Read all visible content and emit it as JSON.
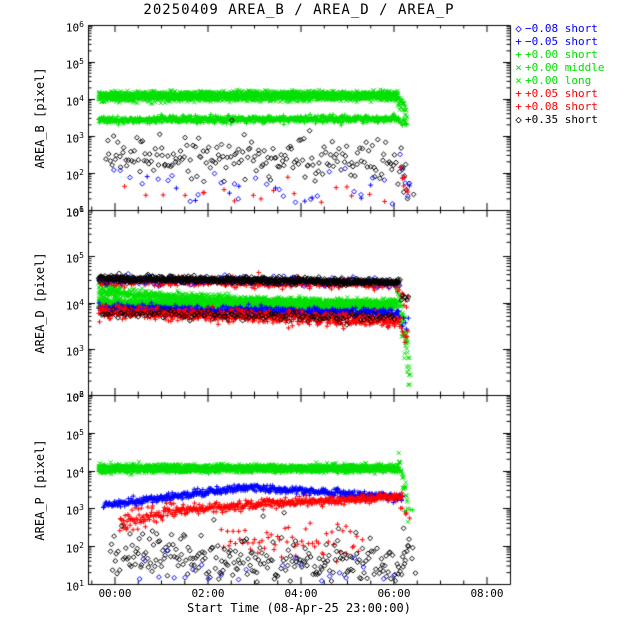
{
  "chart_data": {
    "type": "scatter",
    "title": "20250409 AREA_B / AREA_D / AREA_P",
    "log_base": "10",
    "x_axis": {
      "label": "Start Time (08-Apr-25 23:00:00)",
      "tick_labels": [
        "00:00",
        "02:00",
        "04:00",
        "06:00",
        "08:00"
      ],
      "tick_hours": [
        0,
        2,
        4,
        6,
        8
      ],
      "minor_tick_hours": 0.5,
      "range_hours": [
        -0.58,
        8.49
      ]
    },
    "legend": [
      {
        "glyph": "◇",
        "color": "#0000ff",
        "label": "−0.08 short"
      },
      {
        "glyph": "+",
        "color": "#0000ff",
        "label": "−0.05 short"
      },
      {
        "glyph": "+",
        "color": "#00e000",
        "label": "+0.00 short"
      },
      {
        "glyph": "×",
        "color": "#00e000",
        "label": "+0.00 middle"
      },
      {
        "glyph": "×",
        "color": "#00e000",
        "label": "+0.00 long"
      },
      {
        "glyph": "+",
        "color": "#ff0000",
        "label": "+0.05 short"
      },
      {
        "glyph": "+",
        "color": "#ff0000",
        "label": "+0.08 short"
      },
      {
        "glyph": "◇",
        "color": "#000000",
        "label": "+0.35 short"
      }
    ],
    "panels": [
      {
        "name": "AREA_B",
        "ylabel": "AREA_B [pixel]",
        "log_min": 1,
        "log_max": 6,
        "yticks": [
          6,
          5,
          4,
          3,
          2,
          1
        ],
        "series": [
          {
            "legend": "+0.00 long",
            "sym": "cross",
            "color": "#00e000",
            "segs": [
              [
                -0.35,
                6.08,
                0.007,
                4.02,
                4.06,
                0.055
              ],
              [
                6.08,
                6.28,
                0.012,
                4.0,
                3.55,
                0.13
              ]
            ]
          },
          {
            "legend": "+0.00 middle",
            "sym": "cross",
            "color": "#00e000",
            "segs": [
              [
                -0.35,
                6.08,
                0.007,
                4.11,
                4.13,
                0.05
              ],
              [
                6.08,
                6.26,
                0.013,
                4.08,
                3.82,
                0.1
              ]
            ]
          },
          {
            "legend": "+0.00 short",
            "sym": "plus",
            "color": "#00e000",
            "segs": [
              [
                -0.35,
                6.1,
                0.008,
                3.43,
                3.47,
                0.045
              ],
              [
                6.1,
                6.28,
                0.016,
                3.42,
                3.3,
                0.09
              ]
            ]
          },
          {
            "legend": "+0.35 short",
            "sym": "diamond",
            "color": "#000000",
            "segs": [
              [
                -0.2,
                6.25,
                0.033,
                2.5,
                2.3,
                0.3
              ],
              [
                6.15,
                6.4,
                0.05,
                2.2,
                1.6,
                0.3
              ]
            ]
          },
          {
            "legend": "−0.08 short",
            "sym": "diamond",
            "color": "#0000ff",
            "segs": [
              [
                -0.1,
                6.3,
                0.24,
                1.7,
                1.6,
                0.3
              ],
              [
                6.12,
                6.3,
                0.045,
                2.2,
                1.5,
                0.3
              ]
            ]
          },
          {
            "legend": "+0.05 short",
            "sym": "plus",
            "color": "#ff0000",
            "segs": [
              [
                0.2,
                6.3,
                0.4,
                1.45,
                1.4,
                0.25
              ],
              [
                6.12,
                6.32,
                0.05,
                2.3,
                1.5,
                0.28
              ]
            ]
          },
          {
            "legend": "+0.08 short",
            "sym": "plus",
            "color": "#ff0000",
            "segs": [
              [
                1.0,
                5.8,
                0.8,
                1.3,
                1.3,
                0.2
              ]
            ]
          },
          {
            "legend": "−0.05 short",
            "sym": "plus",
            "color": "#0000ff",
            "segs": [
              [
                0.5,
                6.2,
                0.6,
                1.5,
                1.4,
                0.25
              ]
            ]
          }
        ]
      },
      {
        "name": "AREA_D",
        "ylabel": "AREA_D [pixel]",
        "log_min": 2,
        "log_max": 6,
        "yticks": [
          6,
          5,
          4,
          3,
          2
        ],
        "series": [
          {
            "legend": "+0.00 middle",
            "sym": "cross",
            "color": "#00e000",
            "segs": [
              [
                -0.35,
                0.1,
                0.01,
                4.38,
                4.25,
                0.07
              ],
              [
                -0.35,
                2.8,
                0.008,
                4.22,
                4.04,
                0.05
              ],
              [
                2.8,
                6.05,
                0.008,
                4.04,
                3.94,
                0.05
              ],
              [
                6.05,
                6.35,
                0.007,
                4.45,
                2.2,
                0.22
              ]
            ]
          },
          {
            "legend": "+0.00 long",
            "sym": "cross",
            "color": "#00e000",
            "segs": [
              [
                -0.35,
                6.05,
                0.006,
                4.0,
                3.98,
                0.045
              ],
              [
                6.05,
                6.3,
                0.01,
                3.9,
                3.3,
                0.18
              ]
            ]
          },
          {
            "legend": "+0.00 short",
            "sym": "plus",
            "color": "#00e000",
            "segs": [
              [
                -0.35,
                6.05,
                0.011,
                3.95,
                3.92,
                0.04
              ]
            ]
          },
          {
            "legend": "−0.05 short",
            "sym": "plus",
            "color": "#0000ff",
            "segs": [
              [
                -0.35,
                6.1,
                0.01,
                3.87,
                3.77,
                0.045
              ],
              [
                6.1,
                6.3,
                0.03,
                3.7,
                3.5,
                0.09
              ]
            ]
          },
          {
            "legend": "+0.05 short",
            "sym": "plus",
            "color": "#ff0000",
            "segs": [
              [
                -0.35,
                6.1,
                0.01,
                3.8,
                3.6,
                0.07
              ],
              [
                6.1,
                6.3,
                0.022,
                3.55,
                3.25,
                0.12
              ]
            ]
          },
          {
            "legend": "+0.08 short",
            "sym": "plus",
            "color": "#ff0000",
            "segs": [
              [
                -0.35,
                6.1,
                0.012,
                4.46,
                4.4,
                0.05
              ],
              [
                6.1,
                6.3,
                0.025,
                4.3,
                4.0,
                0.12
              ]
            ]
          },
          {
            "legend": "−0.08 short",
            "sym": "diamond",
            "color": "#0000ff",
            "segs": [
              [
                -0.35,
                6.1,
                0.05,
                4.5,
                4.45,
                0.05
              ]
            ]
          },
          {
            "legend": "+0.35 short",
            "sym": "diamond",
            "color": "#000000",
            "segs": [
              [
                -0.35,
                6.1,
                0.009,
                4.52,
                4.44,
                0.035
              ],
              [
                -0.3,
                6.0,
                0.045,
                3.76,
                3.66,
                0.05
              ],
              [
                6.1,
                6.3,
                0.03,
                4.4,
                4.0,
                0.12
              ]
            ]
          }
        ]
      },
      {
        "name": "AREA_P",
        "ylabel": "AREA_P [pixel]",
        "log_min": 1,
        "log_max": 6,
        "yticks": [
          6,
          5,
          4,
          3,
          2,
          1
        ],
        "series": [
          {
            "legend": "+0.00 long",
            "sym": "cross",
            "color": "#00e000",
            "segs": [
              [
                -0.35,
                6.1,
                0.007,
                4.04,
                4.07,
                0.05
              ],
              [
                6.1,
                6.3,
                0.008,
                4.5,
                2.9,
                0.18
              ]
            ]
          },
          {
            "legend": "+0.00 middle",
            "sym": "cross",
            "color": "#00e000",
            "segs": [
              [
                -0.35,
                6.1,
                0.008,
                4.09,
                4.05,
                0.045
              ]
            ]
          },
          {
            "legend": "+0.00 short",
            "sym": "plus",
            "color": "#00e000",
            "segs": [
              [
                -0.35,
                6.1,
                0.02,
                4.01,
                4.03,
                0.04
              ],
              [
                6.22,
                6.38,
                0.06,
                2.95,
                2.9,
                0.08
              ]
            ]
          },
          {
            "legend": "−0.05 short",
            "sym": "plus",
            "color": "#0000ff",
            "segs": [
              [
                -0.25,
                0.6,
                0.012,
                3.08,
                3.22,
                0.05
              ],
              [
                0.6,
                2.8,
                0.011,
                3.22,
                3.55,
                0.045
              ],
              [
                2.8,
                4.6,
                0.011,
                3.55,
                3.43,
                0.045
              ],
              [
                4.6,
                6.18,
                0.012,
                3.43,
                3.28,
                0.05
              ]
            ]
          },
          {
            "legend": "+0.05 short",
            "sym": "plus",
            "color": "#ff0000",
            "segs": [
              [
                0.1,
                1.3,
                0.014,
                2.6,
                2.95,
                0.12
              ],
              [
                1.3,
                3.2,
                0.013,
                2.95,
                3.12,
                0.07
              ],
              [
                3.2,
                6.18,
                0.012,
                3.12,
                3.3,
                0.055
              ]
            ]
          },
          {
            "legend": "+0.08 short",
            "sym": "plus",
            "color": "#ff0000",
            "segs": [
              [
                2.3,
                5.3,
                0.05,
                2.3,
                2.1,
                0.28
              ],
              [
                6.15,
                6.32,
                0.045,
                3.1,
                2.6,
                0.2
              ]
            ]
          },
          {
            "legend": "+0.35 short",
            "sym": "diamond",
            "color": "#000000",
            "segs": [
              [
                -0.1,
                6.3,
                0.024,
                1.75,
                1.5,
                0.38
              ],
              [
                6.2,
                6.45,
                0.045,
                2.3,
                1.5,
                0.3
              ]
            ]
          },
          {
            "legend": "−0.08 short",
            "sym": "diamond",
            "color": "#0000ff",
            "segs": [
              [
                0.3,
                6.2,
                0.2,
                1.3,
                1.2,
                0.25
              ]
            ]
          }
        ]
      }
    ]
  }
}
